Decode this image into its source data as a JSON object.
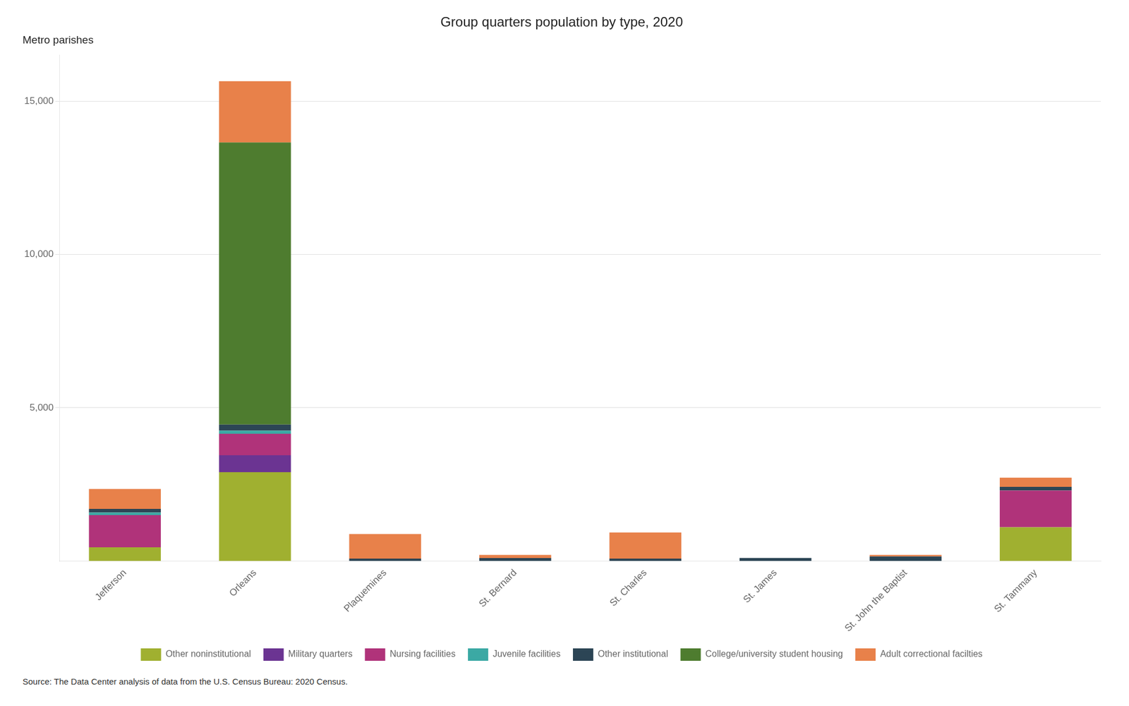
{
  "chart_data": {
    "type": "bar",
    "title": "Group quarters population by type, 2020",
    "subtitle": "Metro parishes",
    "source": "Source: The Data Center analysis of data from the U.S. Census Bureau: 2020 Census.",
    "categories": [
      "Jefferson",
      "Orleans",
      "Plaquemines",
      "St. Bernard",
      "St. Charles",
      "St. James",
      "St. John the Baptist",
      "St. Tammany"
    ],
    "series": [
      {
        "name": "Other noninstitutional",
        "color": "#A0B030",
        "values": [
          450,
          2900,
          0,
          0,
          0,
          0,
          0,
          1100
        ]
      },
      {
        "name": "Military quarters",
        "color": "#6B3492",
        "values": [
          0,
          550,
          0,
          0,
          0,
          0,
          0,
          0
        ]
      },
      {
        "name": "Nursing facilities",
        "color": "#B0337A",
        "values": [
          1050,
          700,
          0,
          0,
          0,
          0,
          0,
          1200
        ]
      },
      {
        "name": "Juvenile facilities",
        "color": "#3BA9A4",
        "values": [
          80,
          100,
          0,
          0,
          0,
          0,
          0,
          0
        ]
      },
      {
        "name": "Other institutional",
        "color": "#2C4555",
        "values": [
          120,
          200,
          80,
          100,
          80,
          100,
          150,
          120
        ]
      },
      {
        "name": "College/university student housing",
        "color": "#4E7C2F",
        "values": [
          0,
          9200,
          0,
          0,
          0,
          0,
          0,
          0
        ]
      },
      {
        "name": "Adult correctional facilties",
        "color": "#E8814A",
        "values": [
          650,
          2000,
          800,
          100,
          850,
          0,
          50,
          300
        ]
      }
    ],
    "stacked": true,
    "ylim": [
      0,
      16500
    ],
    "yticks": [
      {
        "value": 5000,
        "label": "5,000"
      },
      {
        "value": 10000,
        "label": "10,000"
      },
      {
        "value": 15000,
        "label": "15,000"
      }
    ],
    "grid": true,
    "legend": "bottom"
  }
}
